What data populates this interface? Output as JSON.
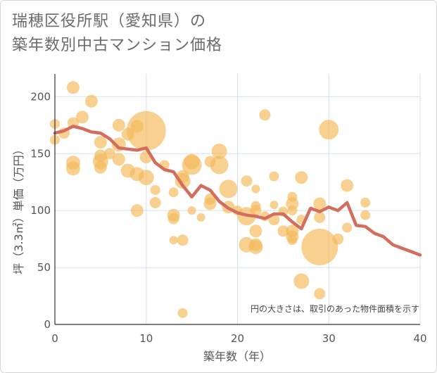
{
  "title_line1": "瑞穂区役所駅（愛知県）の",
  "title_line2": "築年数別中古マンション価格",
  "note": "円の大きさは、取引のあった物件面積を示す",
  "colors": {
    "bubble": "#f4b95c",
    "line": "#d36d5e",
    "grid": "#d5e0ec",
    "axis": "#333333"
  },
  "chart_data": {
    "type": "scatter",
    "xlabel": "築年数（年）",
    "ylabel": "坪（3.3㎡）単価（万円）",
    "xlim": [
      0,
      40
    ],
    "ylim": [
      0,
      220
    ],
    "xticks": [
      0,
      10,
      20,
      30,
      40
    ],
    "yticks": [
      0,
      50,
      100,
      150,
      200
    ],
    "grid": true,
    "bubbles": [
      {
        "x": 0,
        "y": 162,
        "r": 7
      },
      {
        "x": 0,
        "y": 176,
        "r": 7
      },
      {
        "x": 1,
        "y": 168,
        "r": 8
      },
      {
        "x": 2,
        "y": 208,
        "r": 9
      },
      {
        "x": 2,
        "y": 177,
        "r": 8
      },
      {
        "x": 2,
        "y": 142,
        "r": 10
      },
      {
        "x": 2,
        "y": 137,
        "r": 10
      },
      {
        "x": 3,
        "y": 182,
        "r": 9
      },
      {
        "x": 4,
        "y": 196,
        "r": 9
      },
      {
        "x": 5,
        "y": 160,
        "r": 9
      },
      {
        "x": 5,
        "y": 148,
        "r": 9
      },
      {
        "x": 5,
        "y": 143,
        "r": 11
      },
      {
        "x": 5,
        "y": 138,
        "r": 9
      },
      {
        "x": 6,
        "y": 150,
        "r": 8
      },
      {
        "x": 7,
        "y": 175,
        "r": 9
      },
      {
        "x": 7,
        "y": 158,
        "r": 10
      },
      {
        "x": 7,
        "y": 145,
        "r": 9
      },
      {
        "x": 8,
        "y": 167,
        "r": 9
      },
      {
        "x": 8,
        "y": 135,
        "r": 10
      },
      {
        "x": 9,
        "y": 174,
        "r": 9
      },
      {
        "x": 9,
        "y": 132,
        "r": 10
      },
      {
        "x": 9,
        "y": 100,
        "r": 9
      },
      {
        "x": 10,
        "y": 170,
        "r": 28
      },
      {
        "x": 10,
        "y": 147,
        "r": 9
      },
      {
        "x": 10,
        "y": 129,
        "r": 11
      },
      {
        "x": 11,
        "y": 118,
        "r": 7
      },
      {
        "x": 11,
        "y": 107,
        "r": 8
      },
      {
        "x": 12,
        "y": 140,
        "r": 7
      },
      {
        "x": 13,
        "y": 116,
        "r": 7
      },
      {
        "x": 13,
        "y": 96,
        "r": 9
      },
      {
        "x": 13,
        "y": 93,
        "r": 8
      },
      {
        "x": 13,
        "y": 74,
        "r": 6
      },
      {
        "x": 14,
        "y": 130,
        "r": 9
      },
      {
        "x": 14,
        "y": 126,
        "r": 11
      },
      {
        "x": 14,
        "y": 74,
        "r": 8
      },
      {
        "x": 14,
        "y": 10,
        "r": 7
      },
      {
        "x": 15,
        "y": 143,
        "r": 11
      },
      {
        "x": 15,
        "y": 140,
        "r": 14
      },
      {
        "x": 15,
        "y": 100,
        "r": 6
      },
      {
        "x": 16,
        "y": 94,
        "r": 6
      },
      {
        "x": 17,
        "y": 143,
        "r": 8
      },
      {
        "x": 17,
        "y": 110,
        "r": 8
      },
      {
        "x": 17,
        "y": 106,
        "r": 9
      },
      {
        "x": 18,
        "y": 152,
        "r": 11
      },
      {
        "x": 18,
        "y": 140,
        "r": 13
      },
      {
        "x": 19,
        "y": 119,
        "r": 13
      },
      {
        "x": 19,
        "y": 103,
        "r": 9
      },
      {
        "x": 20,
        "y": 100,
        "r": 7
      },
      {
        "x": 21,
        "y": 126,
        "r": 8
      },
      {
        "x": 21,
        "y": 95,
        "r": 13
      },
      {
        "x": 21,
        "y": 70,
        "r": 11
      },
      {
        "x": 22,
        "y": 119,
        "r": 6
      },
      {
        "x": 22,
        "y": 104,
        "r": 7
      },
      {
        "x": 22,
        "y": 100,
        "r": 8
      },
      {
        "x": 22,
        "y": 82,
        "r": 9
      },
      {
        "x": 22,
        "y": 70,
        "r": 9
      },
      {
        "x": 22,
        "y": 68,
        "r": 10
      },
      {
        "x": 23,
        "y": 184,
        "r": 8
      },
      {
        "x": 23,
        "y": 95,
        "r": 7
      },
      {
        "x": 24,
        "y": 130,
        "r": 7
      },
      {
        "x": 24,
        "y": 105,
        "r": 6
      },
      {
        "x": 24,
        "y": 92,
        "r": 8
      },
      {
        "x": 25,
        "y": 82,
        "r": 8
      },
      {
        "x": 25,
        "y": 99,
        "r": 7
      },
      {
        "x": 26,
        "y": 112,
        "r": 7
      },
      {
        "x": 26,
        "y": 106,
        "r": 9
      },
      {
        "x": 26,
        "y": 100,
        "r": 7
      },
      {
        "x": 26,
        "y": 82,
        "r": 9
      },
      {
        "x": 26,
        "y": 77,
        "r": 9
      },
      {
        "x": 26,
        "y": 74,
        "r": 7
      },
      {
        "x": 27,
        "y": 129,
        "r": 9
      },
      {
        "x": 27,
        "y": 92,
        "r": 7
      },
      {
        "x": 27,
        "y": 38,
        "r": 11
      },
      {
        "x": 29,
        "y": 106,
        "r": 9
      },
      {
        "x": 29,
        "y": 94,
        "r": 8
      },
      {
        "x": 29,
        "y": 68,
        "r": 26
      },
      {
        "x": 29,
        "y": 27,
        "r": 8
      },
      {
        "x": 30,
        "y": 171,
        "r": 14
      },
      {
        "x": 31,
        "y": 75,
        "r": 8
      },
      {
        "x": 32,
        "y": 122,
        "r": 9
      },
      {
        "x": 32,
        "y": 85,
        "r": 7
      },
      {
        "x": 34,
        "y": 107,
        "r": 7
      },
      {
        "x": 34,
        "y": 96,
        "r": 7
      }
    ],
    "series": [
      {
        "type": "line",
        "x": [
          0,
          1,
          2,
          3,
          4,
          5,
          6,
          7,
          8,
          9,
          10,
          11,
          12,
          13,
          14,
          15,
          16,
          17,
          18,
          19,
          20,
          21,
          22,
          23,
          24,
          25,
          26,
          27,
          28,
          29,
          30,
          31,
          32,
          33,
          34,
          35,
          36,
          37,
          38,
          39,
          40
        ],
        "y": [
          168,
          170,
          174,
          172,
          169,
          168,
          163,
          155,
          154,
          153,
          155,
          142,
          136,
          134,
          122,
          112,
          122,
          118,
          108,
          102,
          98,
          96,
          95,
          93,
          97,
          97,
          90,
          84,
          102,
          99,
          103,
          100,
          107,
          87,
          86,
          80,
          77,
          70,
          67,
          64,
          61
        ]
      }
    ]
  }
}
